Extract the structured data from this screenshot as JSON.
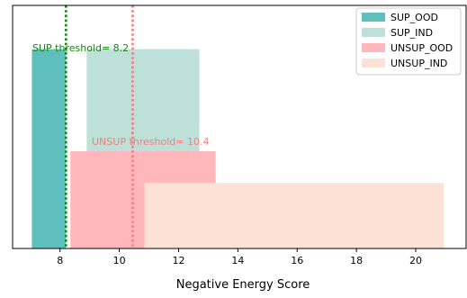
{
  "chart_data": {
    "type": "bar",
    "xlabel": "Negative Energy Score",
    "ylabel": "",
    "xlim": [
      6.4,
      21.7
    ],
    "xticks": [
      8,
      10,
      12,
      14,
      16,
      18,
      20
    ],
    "ylim": [
      0,
      1
    ],
    "yaxis_visible": false,
    "grid": false,
    "legend_position": "top-right",
    "series": [
      {
        "name": "SUP_OOD",
        "color": "#5fbfbf",
        "x_start": 7.05,
        "x_end": 8.2,
        "height": 0.82
      },
      {
        "name": "SUP_IND",
        "color": "#bde0d9",
        "x_start": 8.9,
        "x_end": 12.7,
        "height": 0.82
      },
      {
        "name": "UNSUP_OOD",
        "color": "#ffb7bb",
        "x_start": 8.35,
        "x_end": 13.25,
        "height": 0.4
      },
      {
        "name": "UNSUP_IND",
        "color": "#fbe1d6",
        "x_start": 10.85,
        "x_end": 20.95,
        "height": 0.27
      }
    ],
    "thresholds": [
      {
        "label": "SUP threshold= 8.2",
        "value": 8.2,
        "color": "#118811"
      },
      {
        "label": "UNSUP threshold= 10.4",
        "value": 10.45,
        "color": "#f08080"
      }
    ]
  }
}
